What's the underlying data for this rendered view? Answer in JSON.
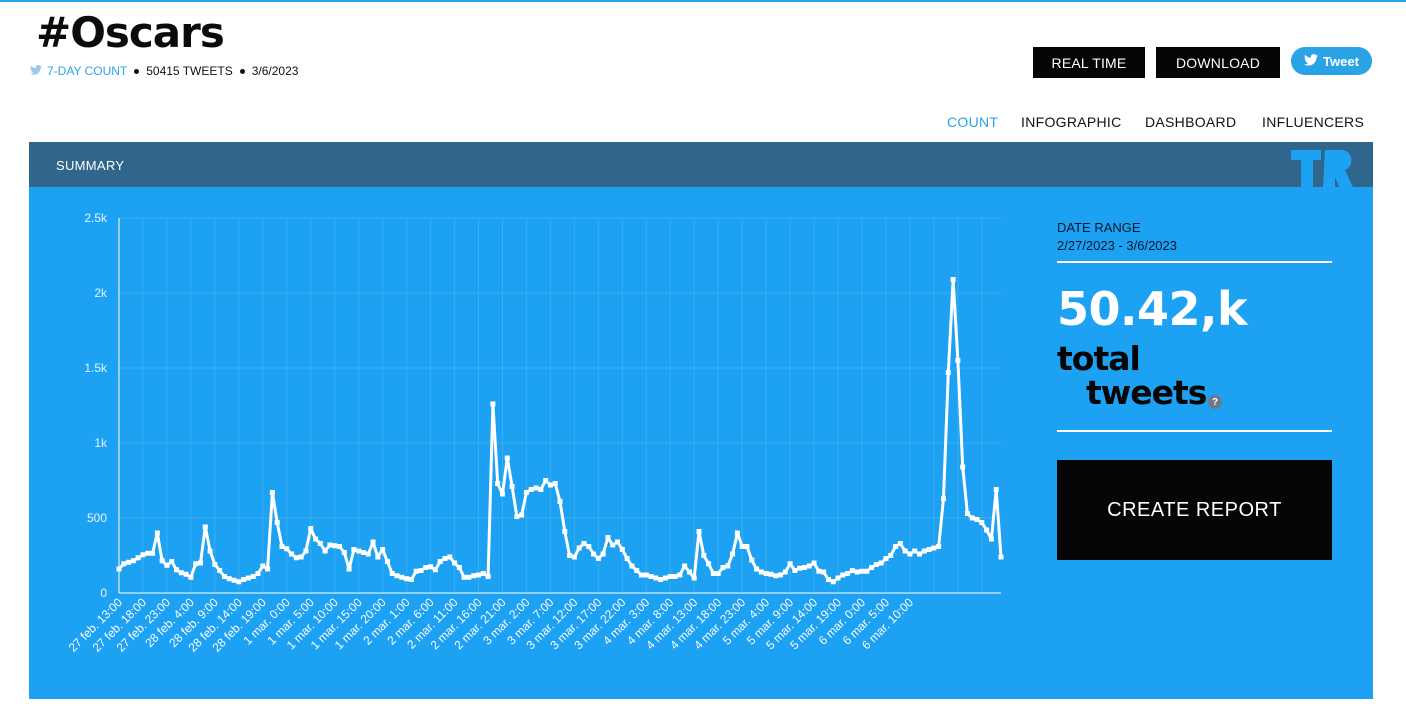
{
  "header": {
    "hashtag": "#Oscars",
    "count_label": "7-DAY COUNT",
    "tweets": "50415 TWEETS",
    "date": "3/6/2023"
  },
  "buttons": {
    "real_time": "REAL TIME",
    "download": "DOWNLOAD",
    "tweet": "Tweet"
  },
  "nav": [
    {
      "label": "COUNT",
      "active": true
    },
    {
      "label": "INFOGRAPHIC",
      "active": false
    },
    {
      "label": "DASHBOARD",
      "active": false
    },
    {
      "label": "INFLUENCERS",
      "active": false
    }
  ],
  "summary": {
    "label": "SUMMARY"
  },
  "side": {
    "date_range_label": "DATE RANGE",
    "date_range": "2/27/2023 - 3/6/2023",
    "total": "50.42,k",
    "total_line1": "total",
    "total_line2": "tweets",
    "help": "?",
    "create_report": "CREATE REPORT"
  },
  "colors": {
    "accent": "#1da1f2",
    "header_bar": "#31668c",
    "line": "#ffffff",
    "link": "#2aa3e6"
  },
  "icons": {
    "twitter_bird": "bird-icon",
    "help": "question-icon",
    "logo": "tr-logo-icon"
  },
  "chart_data": {
    "type": "line",
    "y_ticks": [
      0,
      500,
      "1k",
      "1.5k",
      "2k",
      "2.5k"
    ],
    "y_tick_labels": [
      "0",
      "500",
      "1k",
      "1.5k",
      "2k",
      "2.5k"
    ],
    "ylim": [
      0,
      2500
    ],
    "x_tick_labels": [
      "27 feb. 13:00",
      "27 feb. 18:00",
      "27 feb. 23:00",
      "28 feb. 4:00",
      "28 feb. 9:00",
      "28 feb. 14:00",
      "28 feb. 19:00",
      "1 mar. 0:00",
      "1 mar. 5:00",
      "1 mar. 10:00",
      "1 mar. 15:00",
      "1 mar. 20:00",
      "2 mar. 1:00",
      "2 mar. 6:00",
      "2 mar. 11:00",
      "2 mar. 16:00",
      "2 mar. 21:00",
      "3 mar. 2:00",
      "3 mar. 7:00",
      "3 mar. 12:00",
      "3 mar. 17:00",
      "3 mar. 22:00",
      "4 mar. 3:00",
      "4 mar. 8:00",
      "4 mar. 13:00",
      "4 mar. 18:00",
      "4 mar. 23:00",
      "5 mar. 4:00",
      "5 mar. 9:00",
      "5 mar. 14:00",
      "5 mar. 19:00",
      "6 mar. 0:00",
      "6 mar. 5:00",
      "6 mar. 10:00"
    ],
    "series": [
      {
        "values": [
          160,
          195,
          205,
          215,
          235,
          255,
          265,
          265,
          400,
          215,
          185,
          210,
          155,
          135,
          125,
          105,
          195,
          200,
          440,
          280,
          190,
          150,
          110,
          95,
          85,
          75,
          90,
          100,
          110,
          130,
          180,
          160,
          670,
          470,
          310,
          295,
          260,
          235,
          240,
          280,
          430,
          360,
          330,
          280,
          320,
          315,
          310,
          270,
          160,
          290,
          280,
          270,
          260,
          340,
          240,
          290,
          210,
          130,
          115,
          105,
          95,
          90,
          145,
          150,
          170,
          175,
          155,
          210,
          230,
          240,
          200,
          170,
          105,
          105,
          115,
          120,
          130,
          110,
          1260,
          730,
          660,
          900,
          710,
          510,
          520,
          670,
          690,
          700,
          690,
          750,
          720,
          730,
          610,
          410,
          250,
          240,
          300,
          330,
          310,
          260,
          230,
          260,
          370,
          320,
          340,
          290,
          230,
          180,
          150,
          120,
          120,
          110,
          100,
          90,
          100,
          110,
          110,
          120,
          180,
          140,
          100,
          410,
          250,
          195,
          130,
          130,
          170,
          180,
          260,
          400,
          310,
          310,
          220,
          160,
          140,
          130,
          125,
          115,
          120,
          140,
          195,
          150,
          165,
          170,
          180,
          200,
          145,
          140,
          90,
          75,
          100,
          120,
          130,
          150,
          140,
          145,
          145,
          170,
          190,
          200,
          230,
          250,
          310,
          330,
          280,
          260,
          280,
          260,
          280,
          290,
          300,
          310,
          630,
          1470,
          2090,
          1550,
          840,
          530,
          500,
          490,
          470,
          420,
          360,
          690,
          240
        ]
      }
    ]
  }
}
